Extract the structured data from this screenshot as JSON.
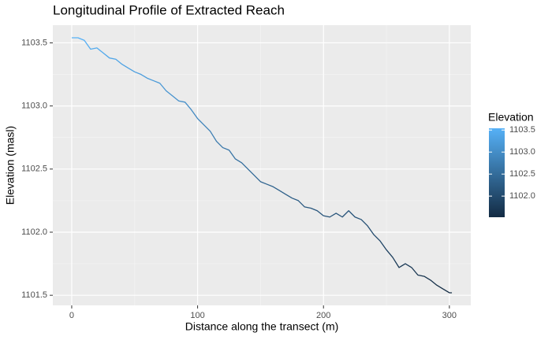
{
  "chart_data": {
    "type": "line",
    "title": "Longitudinal Profile of Extracted Reach",
    "x_label": "Distance along the transect (m)",
    "y_label": "Elevation (masl)",
    "x": [
      0,
      5,
      10,
      15,
      20,
      25,
      30,
      35,
      40,
      45,
      50,
      55,
      60,
      65,
      70,
      75,
      80,
      85,
      90,
      95,
      100,
      105,
      110,
      115,
      120,
      125,
      130,
      135,
      140,
      145,
      150,
      155,
      160,
      165,
      170,
      175,
      180,
      185,
      190,
      195,
      200,
      205,
      210,
      215,
      220,
      225,
      230,
      235,
      240,
      245,
      250,
      255,
      260,
      265,
      270,
      275,
      280,
      285,
      290,
      295,
      300,
      302
    ],
    "series": [
      {
        "name": "Elevation",
        "values": [
          1103.54,
          1103.54,
          1103.52,
          1103.45,
          1103.46,
          1103.42,
          1103.38,
          1103.37,
          1103.33,
          1103.3,
          1103.27,
          1103.25,
          1103.22,
          1103.2,
          1103.18,
          1103.12,
          1103.08,
          1103.04,
          1103.03,
          1102.97,
          1102.9,
          1102.85,
          1102.8,
          1102.72,
          1102.67,
          1102.65,
          1102.58,
          1102.55,
          1102.5,
          1102.45,
          1102.4,
          1102.38,
          1102.36,
          1102.33,
          1102.3,
          1102.27,
          1102.25,
          1102.2,
          1102.19,
          1102.17,
          1102.13,
          1102.12,
          1102.15,
          1102.12,
          1102.17,
          1102.12,
          1102.1,
          1102.05,
          1101.98,
          1101.93,
          1101.86,
          1101.8,
          1101.72,
          1101.75,
          1101.72,
          1101.66,
          1101.65,
          1101.62,
          1101.58,
          1101.55,
          1101.52,
          1101.52
        ]
      }
    ],
    "xlim": [
      -15,
      317
    ],
    "ylim": [
      1101.42,
      1103.64
    ],
    "xticks": [
      0,
      100,
      200,
      300
    ],
    "yticks": [
      1101.5,
      {
        "value": 1102,
        "label": "1102.0"
      },
      1102.5,
      {
        "value": 1103,
        "label": "1103.0"
      },
      1103.5
    ],
    "grid": true,
    "minor_grid": true,
    "color_low": "#132B43",
    "color_high": "#56B1F7",
    "legend_title": "Elevation",
    "legend_ticks": [
      {
        "value": 1102,
        "label": "1102.0"
      },
      1102.5,
      {
        "value": 1103,
        "label": "1103.0"
      },
      1103.5
    ]
  }
}
